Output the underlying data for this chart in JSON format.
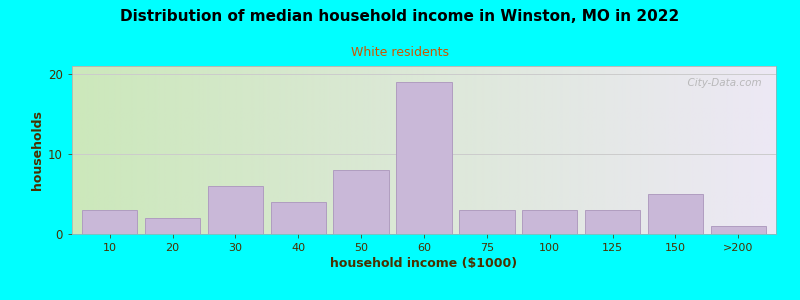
{
  "title": "Distribution of median household income in Winston, MO in 2022",
  "subtitle": "White residents",
  "xlabel": "household income ($1000)",
  "ylabel": "households",
  "background_outer": "#00FFFF",
  "bar_color": "#C9B8D8",
  "bar_edge_color": "#B09DC0",
  "title_color": "#000000",
  "subtitle_color": "#CC5500",
  "xlabel_color": "#4a3000",
  "ylabel_color": "#4a3000",
  "plot_bg_gradient_left": "#cce8bb",
  "plot_bg_gradient_right": "#ede8f5",
  "categories": [
    "10",
    "20",
    "30",
    "40",
    "50",
    "60",
    "75",
    "100",
    "125",
    "150",
    ">200"
  ],
  "values": [
    3,
    2,
    6,
    4,
    8,
    19,
    3,
    3,
    3,
    5,
    1
  ],
  "bar_positions": [
    0,
    1,
    2,
    3,
    4,
    5,
    6,
    7,
    8,
    9,
    10
  ],
  "bar_widths": [
    1,
    1,
    1,
    1,
    1,
    1,
    1,
    1,
    1,
    1,
    1
  ],
  "xlim": [
    -0.6,
    10.6
  ],
  "ylim": [
    0,
    21
  ],
  "yticks": [
    0,
    10,
    20
  ],
  "tick_color": "#4a3000",
  "grid_color": "#cccccc",
  "watermark": "  City-Data.com"
}
